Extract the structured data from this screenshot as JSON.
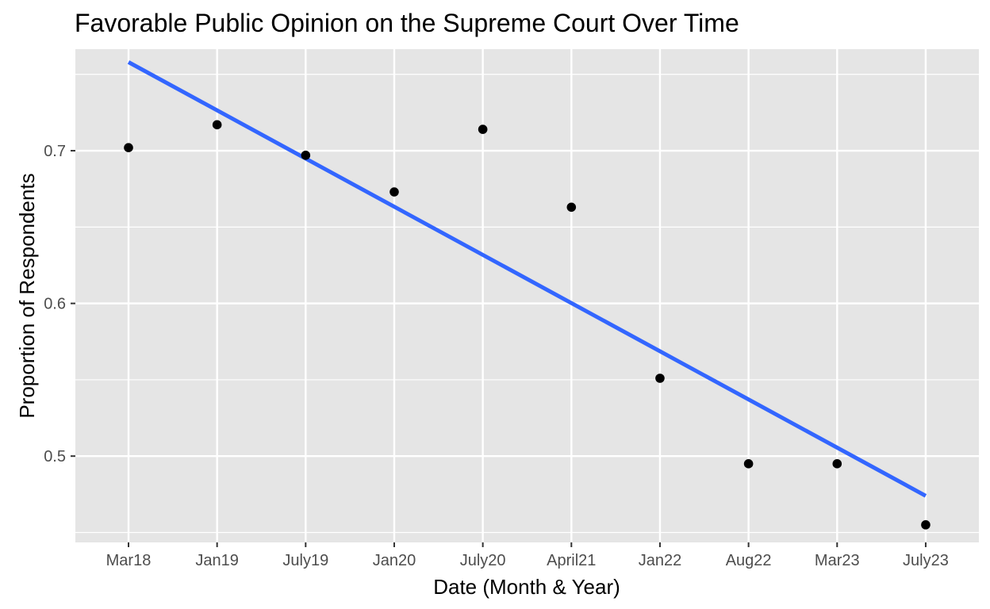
{
  "chart_data": {
    "type": "scatter",
    "title": "Favorable Public Opinion on the Supreme Court Over Time",
    "xlabel": "Date (Month & Year)",
    "ylabel": "Proportion of Respondents",
    "categories": [
      "Mar18",
      "Jan19",
      "July19",
      "Jan20",
      "July20",
      "April21",
      "Jan22",
      "Aug22",
      "Mar23",
      "July23"
    ],
    "series": [
      {
        "values": [
          0.702,
          0.717,
          0.697,
          0.673,
          0.714,
          0.663,
          0.551,
          0.495,
          0.495,
          0.455
        ]
      }
    ],
    "trend_line": {
      "method": "linear fit",
      "start": 0.758,
      "end": 0.474,
      "color": "#3366FF"
    },
    "y_ticks": [
      0.5,
      0.6,
      0.7
    ],
    "y_tick_labels": [
      "0.5",
      "0.6",
      "0.7"
    ],
    "ylim": [
      0.4435,
      0.7665
    ],
    "grid": true,
    "legend": "none",
    "colors": {
      "panel_background": "#E5E5E5",
      "grid": "#FFFFFF",
      "points": "#000000",
      "tick_text": "#4D4D4D"
    }
  }
}
